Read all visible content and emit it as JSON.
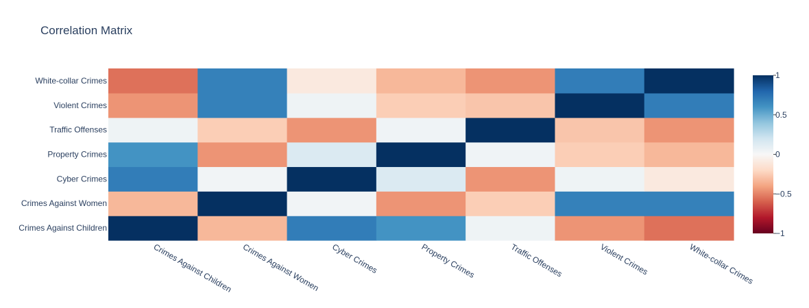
{
  "chart_data": {
    "type": "heatmap",
    "title": "Correlation Matrix",
    "x_categories": [
      "Crimes Against Children",
      "Crimes Against Women",
      "Cyber Crimes",
      "Property Crimes",
      "Traffic Offenses",
      "Violent Crimes",
      "White-collar Crimes"
    ],
    "y_categories": [
      "Crimes Against Children",
      "Crimes Against Women",
      "Cyber Crimes",
      "Property Crimes",
      "Traffic Offenses",
      "Violent Crimes",
      "White-collar Crimes"
    ],
    "z": [
      [
        1.0,
        -0.33,
        0.7,
        0.6,
        0.05,
        -0.45,
        -0.55
      ],
      [
        -0.33,
        1.0,
        0.03,
        -0.45,
        -0.25,
        0.68,
        0.68
      ],
      [
        0.7,
        0.03,
        1.0,
        0.15,
        -0.45,
        0.05,
        -0.1
      ],
      [
        0.6,
        -0.45,
        0.15,
        1.0,
        0.04,
        -0.25,
        -0.33
      ],
      [
        0.05,
        -0.25,
        -0.45,
        0.04,
        1.0,
        -0.28,
        -0.45
      ],
      [
        -0.45,
        0.68,
        0.05,
        -0.25,
        -0.28,
        1.0,
        0.7
      ],
      [
        -0.55,
        0.68,
        -0.1,
        -0.33,
        -0.45,
        0.7,
        1.0
      ]
    ],
    "zmin": -1,
    "zmax": 1,
    "colorscale": [
      "#67001f",
      "#b2182b",
      "#d6604d",
      "#f4a582",
      "#fddbc7",
      "#f7f7f7",
      "#d1e5f0",
      "#92c5de",
      "#4393c3",
      "#2166ac",
      "#053061"
    ],
    "colorbar_ticks": [
      {
        "value": 1,
        "label": "1"
      },
      {
        "value": 0.5,
        "label": "0.5"
      },
      {
        "value": 0,
        "label": "0"
      },
      {
        "value": -0.5,
        "label": "−0.5"
      },
      {
        "value": -1,
        "label": "−1"
      }
    ]
  }
}
